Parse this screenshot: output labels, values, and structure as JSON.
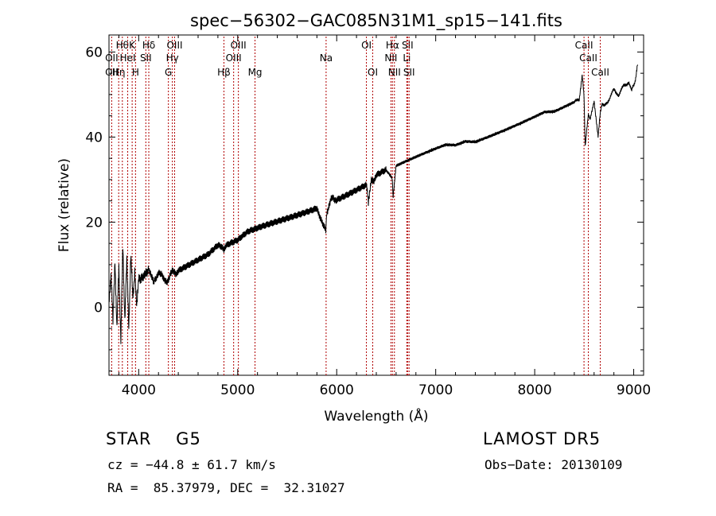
{
  "chart_data": {
    "type": "line",
    "title": "spec−56302−GAC085N31M1_sp15−141.fits",
    "xlabel": "Wavelength (Å)",
    "ylabel": "Flux (relative)",
    "xlim": [
      3700,
      9100
    ],
    "ylim": [
      -16,
      64
    ],
    "xticks": [
      4000,
      5000,
      6000,
      7000,
      8000,
      9000
    ],
    "yticks": [
      0,
      20,
      40,
      60
    ],
    "xticklabels": [
      "4000",
      "5000",
      "6000",
      "7000",
      "8000",
      "9000"
    ],
    "yticklabels": [
      "0",
      "20",
      "40",
      "60"
    ],
    "grid": false,
    "line_color": "#000000",
    "marker_color": "#b00000",
    "series": [
      {
        "x": [
          3700,
          3720,
          3740,
          3760,
          3780,
          3800,
          3820,
          3840,
          3860,
          3880,
          3900,
          3920,
          3940,
          3960,
          3980,
          4000,
          4050,
          4100,
          4150,
          4200,
          4250,
          4300,
          4350,
          4400,
          4500,
          4600,
          4700,
          4800,
          4860,
          4900,
          5000,
          5100,
          5200,
          5300,
          5400,
          5500,
          5600,
          5700,
          5800,
          5890,
          5900,
          5950,
          6000,
          6100,
          6200,
          6300,
          6320,
          6350,
          6400,
          6500,
          6560,
          6570,
          6600,
          6700,
          6800,
          6900,
          7000,
          7100,
          7200,
          7300,
          7400,
          7500,
          7600,
          7700,
          7800,
          7900,
          8000,
          8100,
          8200,
          8300,
          8400,
          8450,
          8480,
          8498,
          8510,
          8542,
          8560,
          8600,
          8640,
          8662,
          8680,
          8700,
          8750,
          8800,
          8850,
          8900,
          8950,
          8980,
          9000,
          9020,
          9040
        ],
        "y": [
          2,
          8,
          -4,
          12,
          -6,
          10,
          -8,
          14,
          -2,
          10,
          -4,
          12,
          2,
          9,
          -1,
          8,
          6,
          10,
          5,
          9,
          6,
          7,
          8,
          9,
          10,
          11,
          12,
          14,
          13,
          14,
          15,
          17,
          18,
          19,
          20,
          21,
          22,
          23,
          24,
          18,
          23,
          25,
          26,
          27,
          28,
          29,
          24,
          30,
          31,
          32,
          30,
          26,
          33,
          34,
          35,
          36,
          37,
          38,
          38,
          39,
          39,
          40,
          41,
          42,
          43,
          44,
          45,
          46,
          46,
          47,
          48,
          49,
          55,
          50,
          38,
          45,
          44,
          48,
          40,
          46,
          48,
          47,
          49,
          51,
          50,
          52,
          53,
          51,
          52,
          54,
          57
        ]
      }
    ],
    "line_markers": [
      {
        "x": 3727,
        "labels": [
          "",
          "OII",
          "OII"
        ]
      },
      {
        "x": 3798,
        "labels": [
          "",
          "",
          "Hη"
        ]
      },
      {
        "x": 3835,
        "labels": [
          "Hθ",
          "",
          ""
        ]
      },
      {
        "x": 3889,
        "labels": [
          "",
          "HeI",
          ""
        ]
      },
      {
        "x": 3934,
        "labels": [
          "K",
          "",
          ""
        ]
      },
      {
        "x": 3968,
        "labels": [
          "",
          "",
          "H"
        ]
      },
      {
        "x": 4072,
        "labels": [
          "",
          "SII",
          ""
        ]
      },
      {
        "x": 4102,
        "labels": [
          "Hδ",
          "",
          ""
        ]
      },
      {
        "x": 4300,
        "labels": [
          "",
          "",
          "G"
        ]
      },
      {
        "x": 4340,
        "labels": [
          "",
          "Hγ",
          ""
        ]
      },
      {
        "x": 4363,
        "labels": [
          "OIII",
          "",
          ""
        ]
      },
      {
        "x": 4861,
        "labels": [
          "",
          "",
          "Hβ"
        ]
      },
      {
        "x": 4959,
        "labels": [
          "",
          "OIII",
          ""
        ]
      },
      {
        "x": 5007,
        "labels": [
          "OIII",
          "",
          ""
        ]
      },
      {
        "x": 5175,
        "labels": [
          "",
          "",
          "Mg"
        ]
      },
      {
        "x": 5893,
        "labels": [
          "",
          "Na",
          ""
        ]
      },
      {
        "x": 6300,
        "labels": [
          "OI",
          "",
          ""
        ]
      },
      {
        "x": 6364,
        "labels": [
          "",
          "",
          "OI"
        ]
      },
      {
        "x": 6548,
        "labels": [
          "",
          "NII",
          ""
        ]
      },
      {
        "x": 6563,
        "labels": [
          "Hα",
          "",
          ""
        ]
      },
      {
        "x": 6583,
        "labels": [
          "",
          "",
          "NII"
        ]
      },
      {
        "x": 6708,
        "labels": [
          "",
          "Li",
          ""
        ]
      },
      {
        "x": 6716,
        "labels": [
          "SII",
          "",
          ""
        ]
      },
      {
        "x": 6731,
        "labels": [
          "",
          "",
          "SII"
        ]
      },
      {
        "x": 8498,
        "labels": [
          "CaII",
          "",
          ""
        ]
      },
      {
        "x": 8542,
        "labels": [
          "",
          "CaII",
          ""
        ]
      },
      {
        "x": 8662,
        "labels": [
          "",
          "",
          "CaII"
        ]
      }
    ]
  },
  "info": {
    "class_line": "STAR    G5",
    "survey": "LAMOST DR5",
    "cz_line": "cz = −44.8 ± 61.7 km/s",
    "obs_date": "Obs−Date: 20130109",
    "radec_line": "RA =  85.37979, DEC =  32.31027"
  }
}
